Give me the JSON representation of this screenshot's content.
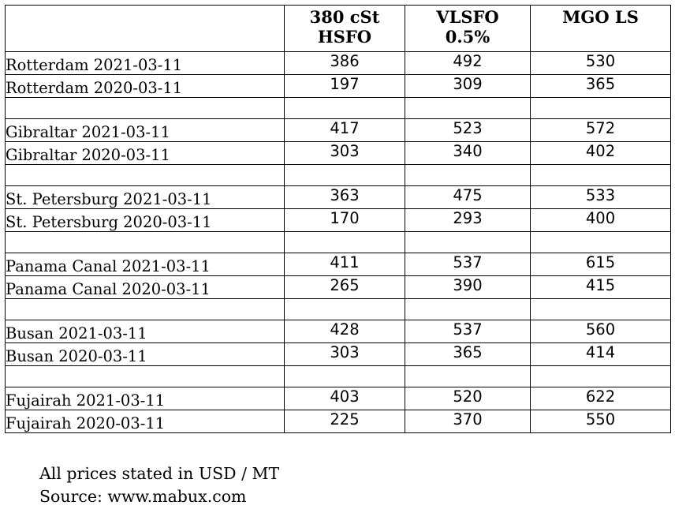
{
  "headers": [
    "",
    "380 cSt\nHSFO",
    "VLSFO\n0.5%",
    "MGO LS"
  ],
  "groups": [
    {
      "rows": [
        {
          "label": "Rotterdam 2021-03-11",
          "values": [
            "386",
            "492",
            "530"
          ]
        },
        {
          "label": "Rotterdam 2020-03-11",
          "values": [
            "197",
            "309",
            "365"
          ]
        }
      ]
    },
    {
      "rows": [
        {
          "label": "Gibraltar 2021-03-11",
          "values": [
            "417",
            "523",
            "572"
          ]
        },
        {
          "label": "Gibraltar 2020-03-11",
          "values": [
            "303",
            "340",
            "402"
          ]
        }
      ]
    },
    {
      "rows": [
        {
          "label": "St. Petersburg 2021-03-11",
          "values": [
            "363",
            "475",
            "533"
          ]
        },
        {
          "label": "St. Petersburg 2020-03-11",
          "values": [
            "170",
            "293",
            "400"
          ]
        }
      ]
    },
    {
      "rows": [
        {
          "label": "Panama Canal 2021-03-11",
          "values": [
            "411",
            "537",
            "615"
          ]
        },
        {
          "label": "Panama Canal 2020-03-11",
          "values": [
            "265",
            "390",
            "415"
          ]
        }
      ]
    },
    {
      "rows": [
        {
          "label": "Busan 2021-03-11",
          "values": [
            "428",
            "537",
            "560"
          ]
        },
        {
          "label": "Busan 2020-03-11",
          "values": [
            "303",
            "365",
            "414"
          ]
        }
      ]
    },
    {
      "rows": [
        {
          "label": "Fujairah 2021-03-11",
          "values": [
            "403",
            "520",
            "622"
          ]
        },
        {
          "label": "Fujairah 2020-03-11",
          "values": [
            "225",
            "370",
            "550"
          ]
        }
      ]
    }
  ],
  "footer": {
    "note": "All prices stated in USD / MT",
    "source": "Source: www.mabux.com"
  }
}
